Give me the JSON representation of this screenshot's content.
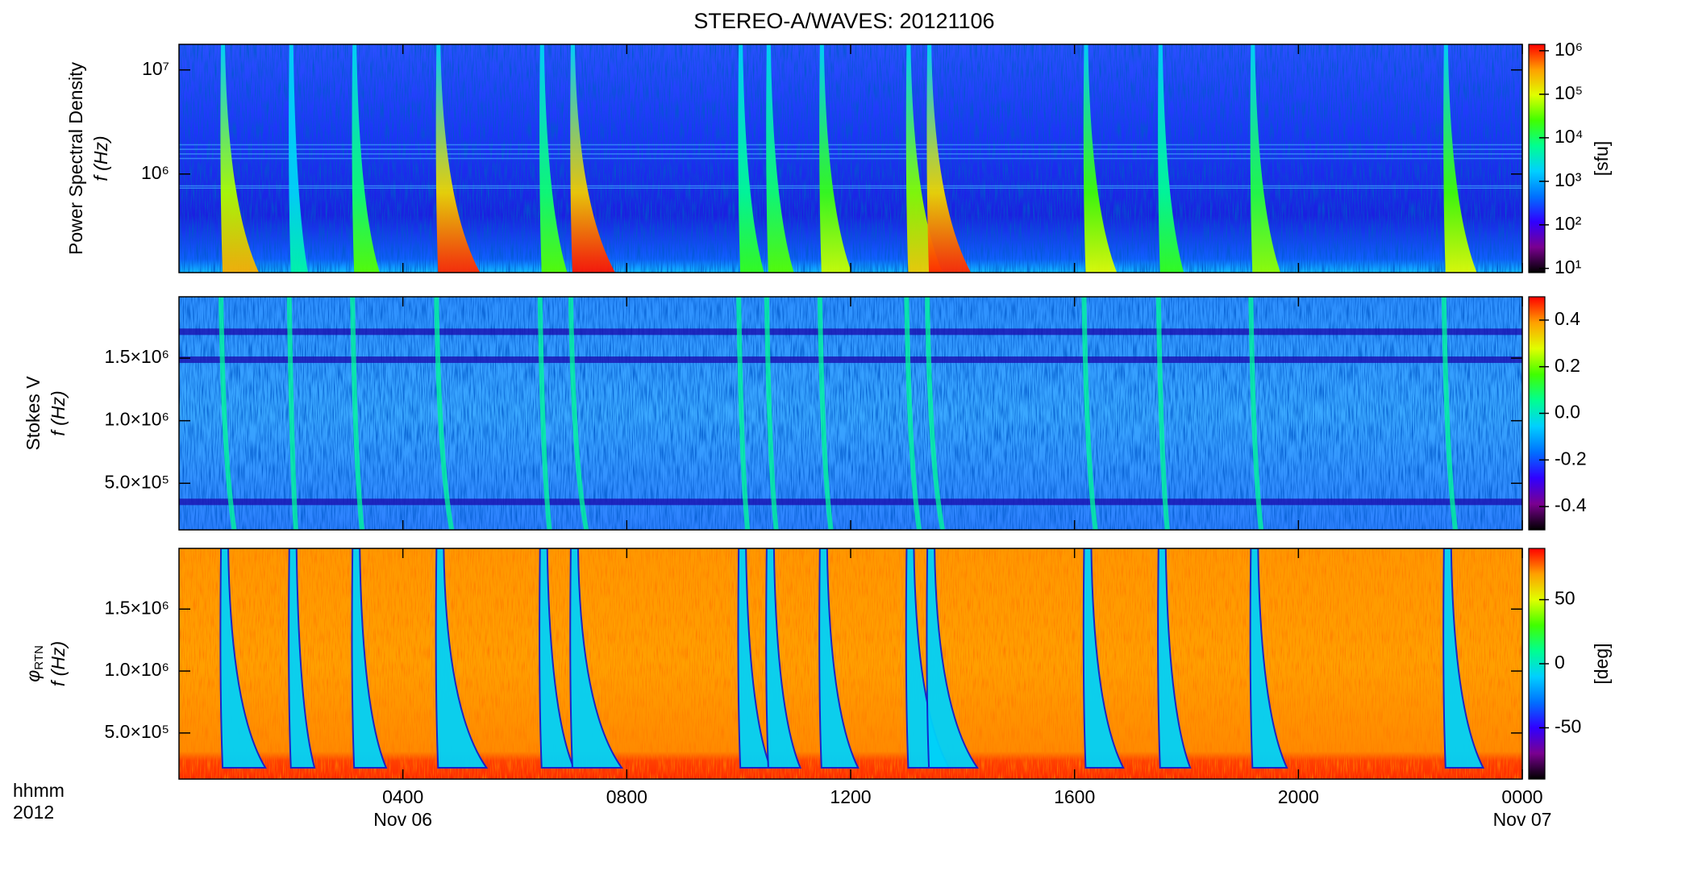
{
  "chart_data": {
    "type": "spectrogram",
    "title": "STEREO-A/WAVES: 20121106",
    "xlim": [
      0,
      24
    ],
    "xticks": [
      {
        "value": 4,
        "label": "0400"
      },
      {
        "value": 8,
        "label": "0800"
      },
      {
        "value": 12,
        "label": "1200"
      },
      {
        "value": 16,
        "label": "1600"
      },
      {
        "value": 20,
        "label": "2000"
      },
      {
        "value": 24,
        "label": "0000"
      }
    ],
    "date_labels": [
      {
        "value": 4,
        "label": "Nov 06"
      },
      {
        "value": 24,
        "label": "Nov 07"
      }
    ],
    "xlabel": [
      "hhmm",
      "2012"
    ],
    "colormap": [
      "#000000",
      "#7a0090",
      "#3000ff",
      "#0070ff",
      "#00d0ff",
      "#00ff90",
      "#40ff00",
      "#e0ff00",
      "#ffa000",
      "#ff0000"
    ],
    "bursts": {
      "times": [
        0.75,
        1.97,
        3.1,
        4.6,
        6.45,
        7.0,
        10.0,
        10.5,
        11.45,
        13.0,
        13.37,
        16.17,
        17.5,
        19.15,
        22.6
      ],
      "peaks": [
        300000,
        5000,
        30000,
        1000000,
        30000,
        1200000,
        20000,
        30000,
        80000,
        200000,
        1000000,
        100000,
        20000,
        50000,
        100000
      ]
    },
    "panels": [
      {
        "ylabel": [
          "Power Spectral Density",
          "f (Hz)"
        ],
        "ylog": true,
        "ylim": [
          113000,
          17600000
        ],
        "yticks": [
          {
            "value": 1000000,
            "label": "10⁶"
          },
          {
            "value": 10000000,
            "label": "10⁷"
          }
        ],
        "clog": true,
        "clim": [
          8,
          1400000
        ],
        "cticks": [
          {
            "value": 10,
            "label": "10¹"
          },
          {
            "value": 100,
            "label": "10²"
          },
          {
            "value": 1000,
            "label": "10³"
          },
          {
            "value": 10000,
            "label": "10⁴"
          },
          {
            "value": 100000,
            "label": "10⁵"
          },
          {
            "value": 1000000,
            "label": "10⁶"
          }
        ],
        "clabel": "[sfu]"
      },
      {
        "ylabel": [
          "Stokes V",
          "f (Hz)"
        ],
        "ylog": false,
        "ylim": [
          128000,
          1990000
        ],
        "yticks": [
          {
            "value": 500000,
            "label": "5.0×10⁵"
          },
          {
            "value": 1000000,
            "label": "1.0×10⁶"
          },
          {
            "value": 1500000,
            "label": "1.5×10⁶"
          }
        ],
        "clog": false,
        "clim": [
          -0.5,
          0.5
        ],
        "cticks": [
          -0.4,
          -0.2,
          {
            "value": 0,
            "label": "0.0"
          },
          0.2,
          0.4
        ]
      },
      {
        "ylabel": [
          "φ",
          "f (Hz)"
        ],
        "ylabel_sub": "RTN",
        "ylog": false,
        "ylim": [
          128000,
          1990000
        ],
        "yticks": [
          {
            "value": 500000,
            "label": "5.0×10⁵"
          },
          {
            "value": 1000000,
            "label": "1.0×10⁶"
          },
          {
            "value": 1500000,
            "label": "1.5×10⁶"
          }
        ],
        "clog": false,
        "clim": [
          -90,
          90
        ],
        "cticks": [
          -50,
          0,
          50
        ],
        "clabel": "[deg]"
      }
    ]
  }
}
